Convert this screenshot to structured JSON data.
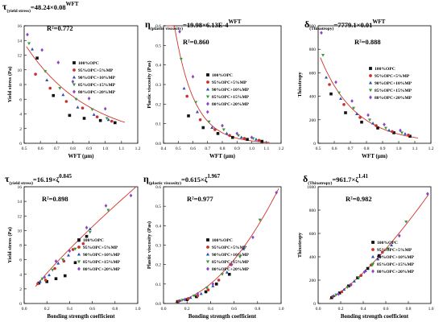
{
  "chart_data": [
    {
      "type": "scatter",
      "eq_main": "τ",
      "eq_sub": "(yield stress)",
      "eq_rhs": "=48.24×0.08",
      "eq_sup": "WFT",
      "r2": "R²=0.772",
      "xlabel": "WFT (μm)",
      "ylabel": "Yield stress (Pa)",
      "xlim": [
        0.5,
        1.2
      ],
      "ylim": [
        0,
        16
      ],
      "xticks": [
        0.5,
        0.6,
        0.7,
        0.8,
        0.9,
        1.0,
        1.1,
        1.2
      ],
      "yticks": [
        0,
        2,
        4,
        6,
        8,
        10,
        12,
        14,
        16
      ],
      "fit": {
        "model": "exp",
        "a": 48.24,
        "b": 0.08
      },
      "series": [
        {
          "name": "100%OPC",
          "x": [
            0.58,
            0.68,
            0.78,
            0.87,
            0.97,
            1.06
          ],
          "y": [
            11.6,
            6.5,
            3.8,
            3.4,
            3.1,
            2.8
          ]
        },
        {
          "name": "95%OPC+5%MP",
          "x": [
            0.57,
            0.66,
            0.76,
            0.86,
            0.95,
            1.04
          ],
          "y": [
            9.4,
            7.5,
            5.7,
            4.8,
            3.6,
            3.0
          ]
        },
        {
          "name": "90%OPC+10%MP",
          "x": [
            0.55,
            0.64,
            0.74,
            0.83,
            0.93,
            1.02
          ],
          "y": [
            12.8,
            8.6,
            6.6,
            4.9,
            3.9,
            3.2
          ]
        },
        {
          "name": "85%OPC+15%MP",
          "x": [
            0.53,
            0.63,
            0.72,
            0.82,
            0.92,
            1.01
          ],
          "y": [
            13.6,
            9.8,
            7.5,
            6.0,
            4.6,
            3.4
          ]
        },
        {
          "name": "80%OPC+20%MP",
          "x": [
            0.52,
            0.61,
            0.71,
            0.8,
            0.9,
            1.0
          ],
          "y": [
            14.8,
            12.7,
            11.0,
            8.4,
            6.1,
            4.7
          ]
        }
      ]
    },
    {
      "type": "scatter",
      "eq_main": "η",
      "eq_sub": "(plastic viscosity)",
      "eq_rhs": "=19.98×6.13E-4",
      "eq_sup": "WFT",
      "r2": "R²=0.860",
      "xlabel": "WFT (μm)",
      "ylabel": "Plastic viscosity (Pas)",
      "xlim": [
        0.4,
        1.2
      ],
      "ylim": [
        0.0,
        0.6
      ],
      "xticks": [
        0.4,
        0.5,
        0.6,
        0.7,
        0.8,
        0.9,
        1.0,
        1.1,
        1.2
      ],
      "yticks": [
        0.0,
        0.1,
        0.2,
        0.3,
        0.4,
        0.5,
        0.6
      ],
      "fit": {
        "model": "exp",
        "a": 19.98,
        "b": 0.000613
      },
      "series": [
        {
          "name": "100%OPC",
          "x": [
            0.57,
            0.67,
            0.77,
            0.87,
            0.97,
            1.07
          ],
          "y": [
            0.14,
            0.08,
            0.05,
            0.03,
            0.02,
            0.01
          ]
        },
        {
          "name": "95%OPC+5%MP",
          "x": [
            0.56,
            0.65,
            0.75,
            0.85,
            0.95,
            1.05
          ],
          "y": [
            0.24,
            0.12,
            0.07,
            0.04,
            0.025,
            0.015
          ]
        },
        {
          "name": "90%OPC+10%MP",
          "x": [
            0.54,
            0.63,
            0.73,
            0.83,
            0.93,
            1.03
          ],
          "y": [
            0.28,
            0.16,
            0.08,
            0.05,
            0.03,
            0.02
          ]
        },
        {
          "name": "85%OPC+15%MP",
          "x": [
            0.52,
            0.62,
            0.71,
            0.81,
            0.91,
            1.01
          ],
          "y": [
            0.43,
            0.21,
            0.11,
            0.07,
            0.04,
            0.025
          ]
        },
        {
          "name": "80%OPC+20%MP",
          "x": [
            0.51,
            0.6,
            0.7,
            0.8,
            0.9,
            1.0
          ],
          "y": [
            0.57,
            0.34,
            0.16,
            0.09,
            0.05,
            0.03
          ]
        }
      ]
    },
    {
      "type": "scatter",
      "eq_main": "δ",
      "eq_sub": "(Thixotropy)",
      "eq_rhs": "=7779.1×0.01",
      "eq_sup": "WFT",
      "r2": "R²=0.888",
      "xlabel": "WFT (μm)",
      "ylabel": "Thixotropy",
      "xlim": [
        0.5,
        1.2
      ],
      "ylim": [
        0,
        1000
      ],
      "xticks": [
        0.5,
        0.6,
        0.7,
        0.8,
        0.9,
        1.0,
        1.1,
        1.2
      ],
      "yticks": [
        0,
        200,
        400,
        600,
        800,
        1000
      ],
      "fit": {
        "model": "exp",
        "a": 7779.1,
        "b": 0.01
      },
      "series": [
        {
          "name": "100%OPC",
          "x": [
            0.58,
            0.67,
            0.77,
            0.87,
            0.97,
            1.07
          ],
          "y": [
            420,
            260,
            180,
            130,
            90,
            60
          ]
        },
        {
          "name": "95%OPC+5%MP",
          "x": [
            0.57,
            0.66,
            0.76,
            0.86,
            0.96,
            1.06
          ],
          "y": [
            500,
            330,
            220,
            150,
            100,
            70
          ]
        },
        {
          "name": "90%OPC+10%MP",
          "x": [
            0.55,
            0.64,
            0.74,
            0.84,
            0.94,
            1.04
          ],
          "y": [
            560,
            380,
            250,
            170,
            110,
            80
          ]
        },
        {
          "name": "85%OPC+15%MP",
          "x": [
            0.53,
            0.63,
            0.72,
            0.82,
            0.92,
            1.02
          ],
          "y": [
            750,
            430,
            300,
            200,
            130,
            90
          ]
        },
        {
          "name": "80%OPC+20%MP",
          "x": [
            0.52,
            0.61,
            0.71,
            0.81,
            0.91,
            1.01
          ],
          "y": [
            940,
            520,
            360,
            240,
            160,
            110
          ]
        }
      ]
    },
    {
      "type": "scatter",
      "eq_main": "τ",
      "eq_sub": "(yield stress)",
      "eq_rhs": "=16.19×ζ",
      "eq_sup": "0.845",
      "r2": "R²=0.898",
      "xlabel": "Bonding strength coefficient",
      "ylabel": "Yield stress (Pa)",
      "xlim": [
        0.0,
        1.0
      ],
      "ylim": [
        0,
        16
      ],
      "xticks": [
        0.0,
        0.2,
        0.4,
        0.6,
        0.8,
        1.0
      ],
      "yticks": [
        0,
        2,
        4,
        6,
        8,
        10,
        12,
        14,
        16
      ],
      "fit": {
        "model": "power",
        "a": 16.19,
        "b": 0.845
      },
      "series": [
        {
          "name": "100%OPC",
          "x": [
            0.13,
            0.2,
            0.28,
            0.36,
            0.45,
            0.55
          ],
          "y": [
            2.8,
            3.0,
            3.4,
            3.8,
            5.6,
            9.2
          ]
        },
        {
          "name": "95%OPC+5%MP",
          "x": [
            0.12,
            0.19,
            0.27,
            0.35,
            0.43,
            0.52
          ],
          "y": [
            2.7,
            3.2,
            4.8,
            5.8,
            7.4,
            8.2
          ]
        },
        {
          "name": "90%OPC+10%MP",
          "x": [
            0.14,
            0.22,
            0.3,
            0.39,
            0.48,
            0.58
          ],
          "y": [
            3.0,
            3.9,
            5.5,
            6.6,
            8.6,
            10.2
          ]
        },
        {
          "name": "85%OPC+15%MP",
          "x": [
            0.16,
            0.25,
            0.34,
            0.45,
            0.58,
            0.74
          ],
          "y": [
            3.4,
            4.6,
            6.0,
            7.5,
            9.8,
            12.8
          ]
        },
        {
          "name": "80%OPC+20%MP",
          "x": [
            0.18,
            0.28,
            0.4,
            0.55,
            0.72,
            0.94
          ],
          "y": [
            3.6,
            5.8,
            7.2,
            10.4,
            13.4,
            14.8
          ]
        }
      ]
    },
    {
      "type": "scatter",
      "eq_main": "η",
      "eq_sub": "(plastic viscosity)",
      "eq_rhs": "=0.615×ζ",
      "eq_sup": "1.967",
      "r2": "R²=0.977",
      "xlabel": "Bonding strength coefficient",
      "ylabel": "Plastic viscosity (Pas)",
      "xlim": [
        0.0,
        1.0
      ],
      "ylim": [
        0.0,
        0.6
      ],
      "xticks": [
        0.0,
        0.2,
        0.4,
        0.6,
        0.8,
        1.0
      ],
      "yticks": [
        0.0,
        0.1,
        0.2,
        0.3,
        0.4,
        0.5,
        0.6
      ],
      "fit": {
        "model": "power",
        "a": 0.615,
        "b": 1.967
      },
      "series": [
        {
          "name": "100%OPC",
          "x": [
            0.12,
            0.2,
            0.28,
            0.36,
            0.45,
            0.56
          ],
          "y": [
            0.01,
            0.02,
            0.035,
            0.06,
            0.1,
            0.15
          ]
        },
        {
          "name": "95%OPC+5%MP",
          "x": [
            0.13,
            0.21,
            0.29,
            0.38,
            0.47,
            0.57
          ],
          "y": [
            0.012,
            0.025,
            0.04,
            0.07,
            0.12,
            0.2
          ]
        },
        {
          "name": "90%OPC+10%MP",
          "x": [
            0.14,
            0.23,
            0.32,
            0.42,
            0.54,
            0.68
          ],
          "y": [
            0.015,
            0.03,
            0.05,
            0.09,
            0.16,
            0.28
          ]
        },
        {
          "name": "85%OPC+15%MP",
          "x": [
            0.16,
            0.26,
            0.37,
            0.5,
            0.65,
            0.82
          ],
          "y": [
            0.018,
            0.04,
            0.08,
            0.15,
            0.24,
            0.43
          ]
        },
        {
          "name": "80%OPC+20%MP",
          "x": [
            0.18,
            0.29,
            0.42,
            0.58,
            0.76,
            0.96
          ],
          "y": [
            0.02,
            0.05,
            0.1,
            0.2,
            0.34,
            0.57
          ]
        }
      ]
    },
    {
      "type": "scatter",
      "eq_main": "δ",
      "eq_sub": "(Thixotropy)",
      "eq_rhs": "=961.7×ζ",
      "eq_sup": "1.41",
      "r2": "R²=0.982",
      "xlabel": "Bonding strength coefficient",
      "ylabel": "Thixotropy",
      "xlim": [
        0.0,
        1.0
      ],
      "ylim": [
        0,
        1000
      ],
      "xticks": [
        0.0,
        0.2,
        0.4,
        0.6,
        0.8,
        1.0
      ],
      "yticks": [
        0,
        200,
        400,
        600,
        800,
        1000
      ],
      "fit": {
        "model": "power",
        "a": 961.7,
        "b": 1.41
      },
      "series": [
        {
          "name": "100%OPC",
          "x": [
            0.12,
            0.19,
            0.27,
            0.35,
            0.44,
            0.54
          ],
          "y": [
            50,
            90,
            150,
            220,
            300,
            410
          ]
        },
        {
          "name": "95%OPC+5%MP",
          "x": [
            0.13,
            0.21,
            0.29,
            0.38,
            0.47,
            0.57
          ],
          "y": [
            60,
            100,
            160,
            240,
            330,
            440
          ]
        },
        {
          "name": "90%OPC+10%MP",
          "x": [
            0.14,
            0.23,
            0.32,
            0.42,
            0.53,
            0.65
          ],
          "y": [
            65,
            120,
            190,
            280,
            380,
            500
          ]
        },
        {
          "name": "85%OPC+15%MP",
          "x": [
            0.16,
            0.26,
            0.36,
            0.48,
            0.62,
            0.78
          ],
          "y": [
            75,
            140,
            220,
            330,
            470,
            700
          ]
        },
        {
          "name": "80%OPC+20%MP",
          "x": [
            0.18,
            0.29,
            0.41,
            0.55,
            0.72,
            0.97
          ],
          "y": [
            80,
            160,
            270,
            400,
            580,
            940
          ]
        }
      ]
    }
  ],
  "series_styles": [
    {
      "marker": "square",
      "color": "#111111"
    },
    {
      "marker": "circle",
      "color": "#c8322a"
    },
    {
      "marker": "triangle-up",
      "color": "#2f4fb0"
    },
    {
      "marker": "triangle-down",
      "color": "#2f9a3a"
    },
    {
      "marker": "diamond",
      "color": "#8d42c4"
    }
  ],
  "fit_color": "#d0352c"
}
